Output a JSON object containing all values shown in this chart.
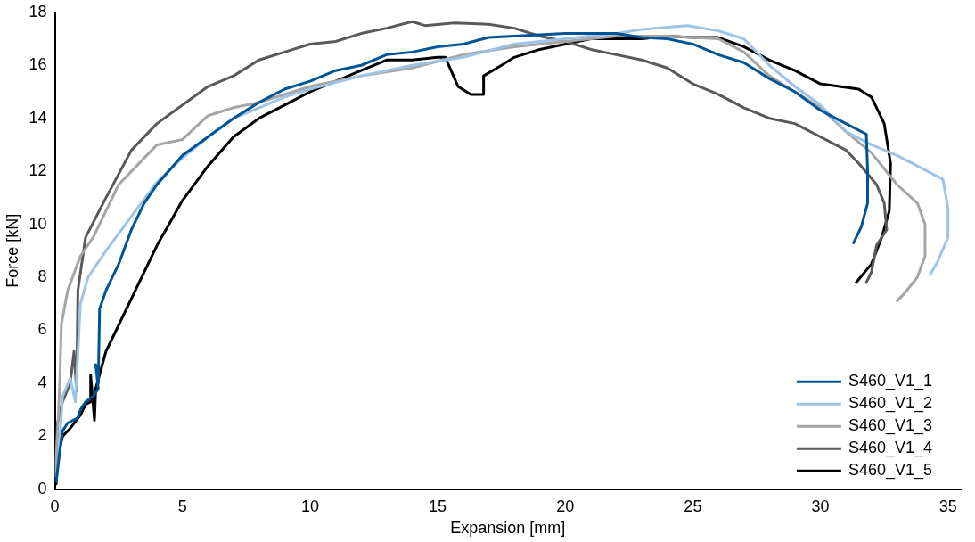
{
  "chart_data": {
    "type": "line",
    "xlabel": "Expansion [mm]",
    "ylabel": "Force [kN]",
    "xlim": [
      0,
      35.5
    ],
    "xticks": [
      0,
      5,
      10,
      15,
      20,
      25,
      30,
      35
    ],
    "ylim": [
      0,
      18
    ],
    "yticks": [
      0,
      2,
      4,
      6,
      8,
      10,
      12,
      14,
      16,
      18
    ],
    "grid": false,
    "legend": "bottom right",
    "marker": "none",
    "line_style": "solid",
    "series": [
      {
        "name": "S460_V1_1",
        "color": "#005496",
        "x": [
          0.05,
          0.2,
          0.3,
          0.5,
          0.9,
          1.0,
          1.2,
          1.5,
          1.7,
          1.6,
          1.7,
          1.75,
          2,
          2.5,
          3,
          3.5,
          4,
          5,
          6,
          7,
          8,
          9,
          10,
          11,
          12,
          13,
          14,
          15,
          16,
          17,
          18,
          20,
          22,
          23,
          24,
          25,
          26,
          27,
          28,
          29,
          30,
          31,
          31.8,
          31.85,
          31.85,
          31.6,
          31.3
        ],
        "values": [
          0.3,
          1.5,
          2.2,
          2.5,
          2.7,
          3.0,
          3.3,
          3.5,
          3.8,
          4.7,
          4.0,
          6.8,
          7.5,
          8.5,
          9.8,
          10.8,
          11.5,
          12.6,
          13.3,
          14,
          14.6,
          15.1,
          15.4,
          15.8,
          16.0,
          16.4,
          16.5,
          16.7,
          16.8,
          17.05,
          17.1,
          17.2,
          17.2,
          17.05,
          17.0,
          16.8,
          16.4,
          16.1,
          15.5,
          15.0,
          14.3,
          13.8,
          13.4,
          12,
          10.8,
          9.9,
          9.3
        ]
      },
      {
        "name": "S460_V1_2",
        "color": "#9dc3e6",
        "x": [
          0.1,
          0.2,
          0.3,
          0.6,
          0.8,
          1.0,
          1.3,
          2,
          3,
          4,
          5,
          6,
          7,
          8,
          9,
          10,
          12,
          14,
          16,
          18,
          20,
          22,
          23,
          24.8,
          26,
          27,
          28,
          29,
          30,
          31,
          32,
          33,
          34,
          34.8,
          35.0,
          35.0,
          34.6,
          34.3
        ],
        "values": [
          0.5,
          2,
          3.5,
          4.2,
          3.3,
          7.0,
          8.0,
          9,
          10.3,
          11.6,
          12.5,
          13.3,
          14,
          14.4,
          14.8,
          15.1,
          15.6,
          16.0,
          16.3,
          16.8,
          17.0,
          17.2,
          17.35,
          17.5,
          17.3,
          17,
          16,
          15.2,
          14.5,
          13.5,
          13,
          12.6,
          12.1,
          11.7,
          10.6,
          9.5,
          8.6,
          8.1
        ]
      },
      {
        "name": "S460_V1_3",
        "color": "#a5a5a5",
        "x": [
          0,
          0.1,
          0.2,
          0.25,
          0.5,
          1,
          1.5,
          2,
          2.5,
          3,
          4,
          5,
          6,
          7,
          8,
          10,
          12,
          14,
          16,
          18,
          20,
          22,
          24,
          26,
          27,
          28,
          29,
          30,
          31,
          32,
          33,
          33.8,
          34.1,
          34.1,
          33.8,
          33.3,
          33.0
        ],
        "values": [
          0.5,
          2,
          4.3,
          6.2,
          7.5,
          8.8,
          9.5,
          10.5,
          11.5,
          12,
          13,
          13.2,
          14.1,
          14.4,
          14.6,
          15.2,
          15.6,
          15.9,
          16.4,
          16.7,
          16.9,
          17.1,
          17.1,
          17.0,
          16.5,
          15.6,
          15,
          14.4,
          13.5,
          12.7,
          11.5,
          10.8,
          10,
          8.8,
          8,
          7.4,
          7.1
        ]
      },
      {
        "name": "S460_V1_4",
        "color": "#595959",
        "x": [
          0,
          0.1,
          0.3,
          0.6,
          0.75,
          0.85,
          0.9,
          1.2,
          2,
          3,
          4,
          5,
          6,
          7,
          8,
          9,
          10,
          11,
          12,
          13,
          14,
          14.5,
          15.7,
          17,
          18,
          19,
          20,
          21,
          22,
          23,
          24,
          25,
          26,
          27,
          28,
          29,
          30,
          31,
          31.5,
          32.2,
          32.5,
          32.6,
          32.2,
          32,
          31.8
        ],
        "values": [
          0.5,
          2.5,
          3.3,
          4.0,
          5.2,
          3.7,
          7.5,
          9.5,
          11,
          12.8,
          13.8,
          14.5,
          15.2,
          15.6,
          16.2,
          16.5,
          16.8,
          16.9,
          17.2,
          17.4,
          17.65,
          17.5,
          17.6,
          17.55,
          17.4,
          17.1,
          16.9,
          16.6,
          16.4,
          16.2,
          15.9,
          15.3,
          14.9,
          14.4,
          14.0,
          13.8,
          13.3,
          12.8,
          12.3,
          11.5,
          10.8,
          9.8,
          9.2,
          8.2,
          7.8
        ]
      },
      {
        "name": "S460_V1_5",
        "color": "#000000",
        "x": [
          0.05,
          0.1,
          0.3,
          0.6,
          1,
          1.2,
          1.4,
          1.4,
          1.55,
          1.6,
          2,
          3,
          4,
          5,
          6,
          7,
          8,
          9,
          10,
          11,
          12,
          13,
          14,
          15,
          15.3,
          15.8,
          16.3,
          16.8,
          16.8,
          17.5,
          18,
          19,
          20,
          21,
          22,
          23,
          24,
          25,
          26,
          27,
          28,
          29,
          30,
          31.5,
          32.0,
          32.5,
          32.75,
          32.7,
          32.4,
          32,
          31.4
        ],
        "values": [
          0.2,
          1.2,
          2.0,
          2.3,
          2.8,
          3.2,
          3.3,
          4.3,
          2.6,
          3.8,
          5.2,
          7.2,
          9.2,
          10.9,
          12.2,
          13.3,
          14,
          14.5,
          15,
          15.4,
          15.8,
          16.2,
          16.2,
          16.3,
          16.3,
          15.2,
          14.9,
          14.9,
          15.6,
          16.0,
          16.3,
          16.6,
          16.8,
          17.0,
          17.0,
          17.0,
          17.1,
          17.05,
          17.05,
          16.7,
          16.2,
          15.8,
          15.3,
          15.1,
          14.8,
          13.8,
          12.3,
          10.5,
          9.5,
          8.5,
          7.8
        ]
      }
    ]
  }
}
